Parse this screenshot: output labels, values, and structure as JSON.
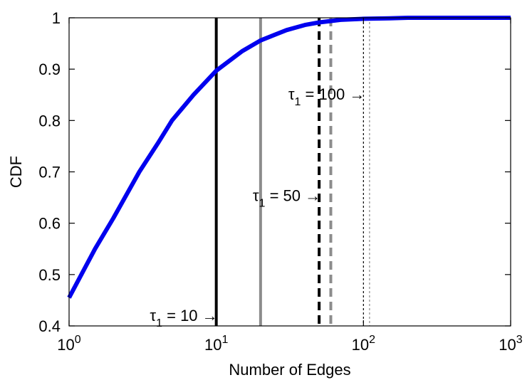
{
  "chart_data": {
    "type": "line",
    "xlabel": "Number of Edges",
    "ylabel": "CDF",
    "xscale": "log",
    "xlim": [
      1,
      1000
    ],
    "ylim": [
      0.4,
      1.0
    ],
    "grid": false,
    "x_ticks": [
      {
        "value": 1,
        "base": "10",
        "exp": "0"
      },
      {
        "value": 10,
        "base": "10",
        "exp": "1"
      },
      {
        "value": 100,
        "base": "10",
        "exp": "2"
      },
      {
        "value": 1000,
        "base": "10",
        "exp": "3"
      }
    ],
    "y_ticks": [
      {
        "value": 0.4,
        "label": "0.4"
      },
      {
        "value": 0.5,
        "label": "0.5"
      },
      {
        "value": 0.6,
        "label": "0.6"
      },
      {
        "value": 0.7,
        "label": "0.7"
      },
      {
        "value": 0.8,
        "label": "0.8"
      },
      {
        "value": 0.9,
        "label": "0.9"
      },
      {
        "value": 1.0,
        "label": "1"
      }
    ],
    "series": [
      {
        "color": "#0000ee",
        "x": [
          1,
          1.5,
          2,
          3,
          4,
          5,
          7,
          10,
          15,
          20,
          30,
          40,
          50,
          70,
          100,
          150,
          200,
          300,
          500,
          1000
        ],
        "y": [
          0.455,
          0.55,
          0.61,
          0.7,
          0.755,
          0.8,
          0.85,
          0.897,
          0.935,
          0.956,
          0.976,
          0.986,
          0.991,
          0.996,
          0.998,
          0.999,
          1.0,
          1.0,
          1.0,
          1.0
        ]
      }
    ],
    "vertical_lines": [
      {
        "x": 10,
        "color": "#000000",
        "style": "solid"
      },
      {
        "x": 20,
        "color": "#8c8c8c",
        "style": "solid"
      },
      {
        "x": 50,
        "color": "#000000",
        "style": "dashed"
      },
      {
        "x": 60,
        "color": "#8c8c8c",
        "style": "dashed"
      },
      {
        "x": 100,
        "color": "#000000",
        "style": "dotted"
      },
      {
        "x": 110,
        "color": "#8c8c8c",
        "style": "dotted"
      }
    ],
    "annotations": [
      {
        "text": "τ",
        "sub": "1",
        "rest": " = 10 →",
        "x": 10,
        "y": 0.421
      },
      {
        "text": "τ",
        "sub": "1",
        "rest": " = 50 →",
        "x": 50,
        "y": 0.654
      },
      {
        "text": "τ",
        "sub": "1",
        "rest": " = 100 →",
        "x": 100,
        "y": 0.852
      }
    ]
  }
}
